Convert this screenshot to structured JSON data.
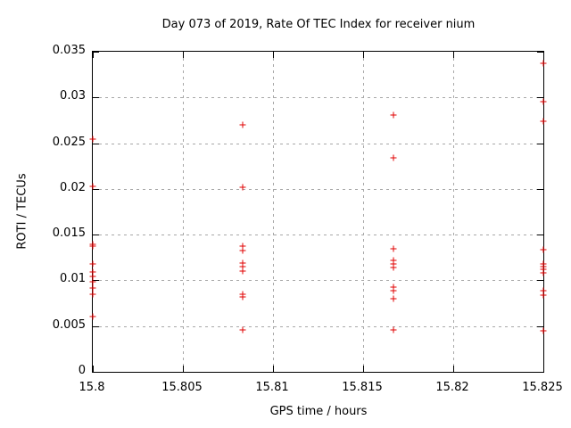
{
  "chart_data": {
    "type": "scatter",
    "title": "Day 073 of 2019, Rate Of TEC Index for receiver nium",
    "xlabel": "GPS time / hours",
    "ylabel": "ROTI / TECUs",
    "xlim": [
      15.8,
      15.825
    ],
    "ylim": [
      0,
      0.035
    ],
    "xticks": [
      15.8,
      15.805,
      15.81,
      15.815,
      15.82,
      15.825
    ],
    "xtick_labels": [
      "15.8",
      "15.805",
      "15.81",
      "15.815",
      "15.82",
      "15.825"
    ],
    "yticks": [
      0,
      0.005,
      0.01,
      0.015,
      0.02,
      0.025,
      0.03,
      0.035
    ],
    "ytick_labels": [
      "0",
      "0.005",
      "0.01",
      "0.015",
      "0.02",
      "0.025",
      "0.03",
      "0.035"
    ],
    "grid": true,
    "legend_position": "none",
    "marker": "plus",
    "marker_color": "#e00000",
    "axis_color": "#000000",
    "grid_color": "#a8a8a8",
    "series": [
      {
        "name": "roti",
        "points": [
          [
            15.8,
            0.0254
          ],
          [
            15.8,
            0.0203
          ],
          [
            15.8,
            0.0139
          ],
          [
            15.8,
            0.0137
          ],
          [
            15.8,
            0.0118
          ],
          [
            15.8,
            0.0109
          ],
          [
            15.8,
            0.0104
          ],
          [
            15.8,
            0.0098
          ],
          [
            15.8,
            0.0092
          ],
          [
            15.8,
            0.0085
          ],
          [
            15.8,
            0.006
          ],
          [
            15.8083,
            0.027
          ],
          [
            15.8083,
            0.0202
          ],
          [
            15.8083,
            0.0137
          ],
          [
            15.8083,
            0.0133
          ],
          [
            15.8083,
            0.0119
          ],
          [
            15.8083,
            0.0115
          ],
          [
            15.8083,
            0.011
          ],
          [
            15.8083,
            0.0085
          ],
          [
            15.8083,
            0.0082
          ],
          [
            15.8083,
            0.0046
          ],
          [
            15.8167,
            0.0281
          ],
          [
            15.8167,
            0.0234
          ],
          [
            15.8167,
            0.0135
          ],
          [
            15.8167,
            0.0122
          ],
          [
            15.8167,
            0.0118
          ],
          [
            15.8167,
            0.0114
          ],
          [
            15.8167,
            0.0093
          ],
          [
            15.8167,
            0.0089
          ],
          [
            15.8167,
            0.008
          ],
          [
            15.8167,
            0.0046
          ],
          [
            15.825,
            0.0337
          ],
          [
            15.825,
            0.0295
          ],
          [
            15.825,
            0.0274
          ],
          [
            15.825,
            0.0134
          ],
          [
            15.825,
            0.0118
          ],
          [
            15.825,
            0.0115
          ],
          [
            15.825,
            0.0112
          ],
          [
            15.825,
            0.0108
          ],
          [
            15.825,
            0.0089
          ],
          [
            15.825,
            0.0084
          ],
          [
            15.825,
            0.0045
          ]
        ]
      }
    ]
  }
}
